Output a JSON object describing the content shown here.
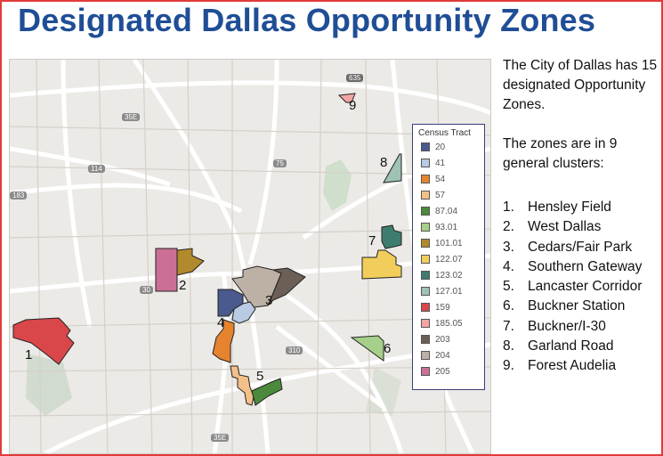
{
  "title": "Designated Dallas Opportunity Zones",
  "intro_1": "The City of Dallas has 15 designated Opportunity Zones.",
  "intro_2": "The zones are in 9 general clusters:",
  "clusters": [
    {
      "num": "1.",
      "name": "Hensley Field"
    },
    {
      "num": "2.",
      "name": "West Dallas"
    },
    {
      "num": "3.",
      "name": "Cedars/Fair Park"
    },
    {
      "num": "4.",
      "name": "Southern Gateway"
    },
    {
      "num": "5.",
      "name": "Lancaster Corridor"
    },
    {
      "num": "6.",
      "name": "Buckner Station"
    },
    {
      "num": "7.",
      "name": "Buckner/I-30"
    },
    {
      "num": "8.",
      "name": "Garland Road"
    },
    {
      "num": "9.",
      "name": "Forest Audelia"
    }
  ],
  "map_labels": [
    "1",
    "2",
    "3",
    "4",
    "5",
    "6",
    "7",
    "8",
    "9"
  ],
  "highway_shields": [
    "635",
    "35E",
    "114",
    "75",
    "183",
    "30",
    "310",
    "35E"
  ],
  "legend": {
    "title": "Census Tract",
    "items": [
      {
        "label": "20",
        "color": "#4a5a8e"
      },
      {
        "label": "41",
        "color": "#b9cbe3"
      },
      {
        "label": "54",
        "color": "#e6832f"
      },
      {
        "label": "57",
        "color": "#f4c08a"
      },
      {
        "label": "87.04",
        "color": "#4b8a3c"
      },
      {
        "label": "93.01",
        "color": "#a6cf8a"
      },
      {
        "label": "101.01",
        "color": "#b08a2c"
      },
      {
        "label": "122.07",
        "color": "#f1cd5b"
      },
      {
        "label": "123.02",
        "color": "#3f7c70"
      },
      {
        "label": "127.01",
        "color": "#9fc2b4"
      },
      {
        "label": "159",
        "color": "#d9474a"
      },
      {
        "label": "185.05",
        "color": "#f2a6a3"
      },
      {
        "label": "203",
        "color": "#6c5f56"
      },
      {
        "label": "204",
        "color": "#bdb1a6"
      },
      {
        "label": "205",
        "color": "#cc6f96"
      }
    ]
  }
}
